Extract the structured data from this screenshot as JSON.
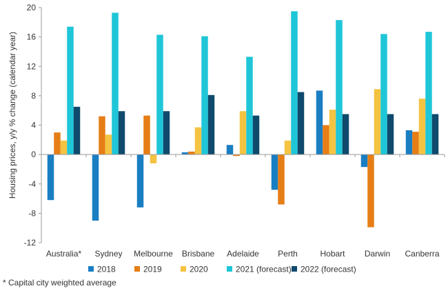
{
  "chart_data": {
    "type": "bar",
    "title": "",
    "xlabel": "",
    "ylabel": "Housing prices, y/y % change (calendar year)",
    "ylim": [
      -12,
      20
    ],
    "yticks": [
      -12,
      -8,
      -4,
      0,
      4,
      8,
      12,
      16,
      20
    ],
    "grid": false,
    "legend_position": "bottom",
    "categories": [
      "Australia*",
      "Sydney",
      "Melbourne",
      "Brisbane",
      "Adelaide",
      "Perth",
      "Hobart",
      "Darwin",
      "Canberra"
    ],
    "series": [
      {
        "name": "2018",
        "color": "#1a7ec3",
        "values": [
          -6.2,
          -9.0,
          -7.2,
          0.3,
          1.3,
          -4.8,
          8.7,
          -1.7,
          3.3
        ]
      },
      {
        "name": "2019",
        "color": "#e67e16",
        "values": [
          3.0,
          5.2,
          5.3,
          0.4,
          -0.2,
          -6.8,
          4.0,
          -9.9,
          3.1
        ]
      },
      {
        "name": "2020",
        "color": "#f5c342",
        "values": [
          1.9,
          2.7,
          -1.2,
          3.7,
          5.9,
          1.9,
          6.1,
          8.9,
          7.6
        ]
      },
      {
        "name": "2021 (forecast)",
        "color": "#1ec6d8",
        "values": [
          17.4,
          19.3,
          16.3,
          16.1,
          13.3,
          19.5,
          18.3,
          16.4,
          16.7
        ]
      },
      {
        "name": "2022 (forecast)",
        "color": "#0f4a6d",
        "values": [
          6.5,
          5.9,
          5.9,
          8.1,
          5.3,
          8.5,
          5.5,
          5.5,
          5.5
        ]
      }
    ],
    "footnote": "* Capital city weighted average"
  }
}
